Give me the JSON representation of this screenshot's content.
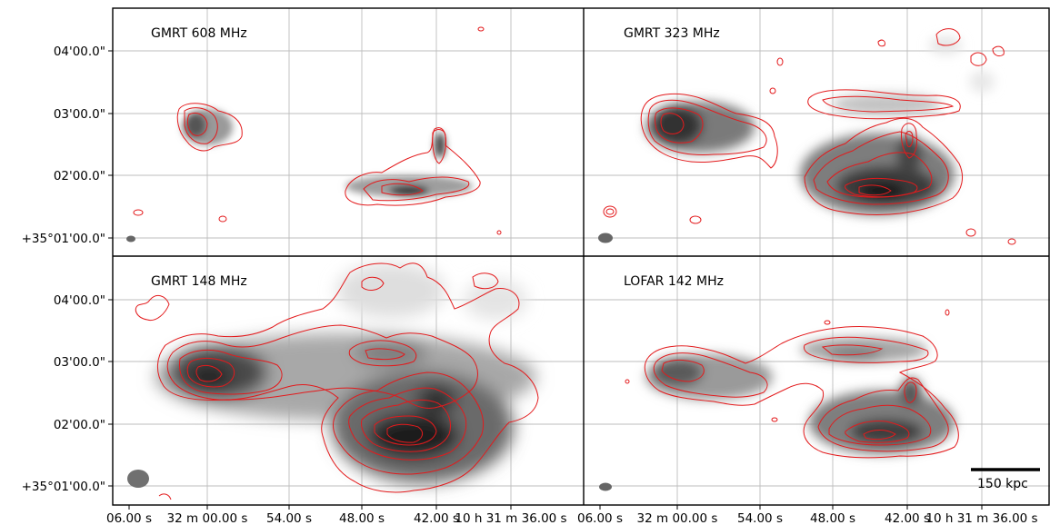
{
  "panels": [
    {
      "id": "gmrt608",
      "label": "GMRT 608 MHz"
    },
    {
      "id": "gmrt323",
      "label": "GMRT 323 MHz"
    },
    {
      "id": "gmrt148",
      "label": "GMRT 148 MHz"
    },
    {
      "id": "lofar142",
      "label": "LOFAR 142 MHz"
    }
  ],
  "y_ticks": [
    "04'00.0\"",
    "03'00.0\"",
    "02'00.0\"",
    "+35°01'00.0\""
  ],
  "x_ticks": [
    "06.00 s",
    "32 m 00.00 s",
    "54.00 s",
    "48.00 s",
    "42.00 s",
    "10 h 31 m 36.00 s"
  ],
  "scale_bar": {
    "label": "150 kpc"
  },
  "colors": {
    "contour": "#e31a1c",
    "grid": "#bdbdbd",
    "frame": "#000000"
  }
}
